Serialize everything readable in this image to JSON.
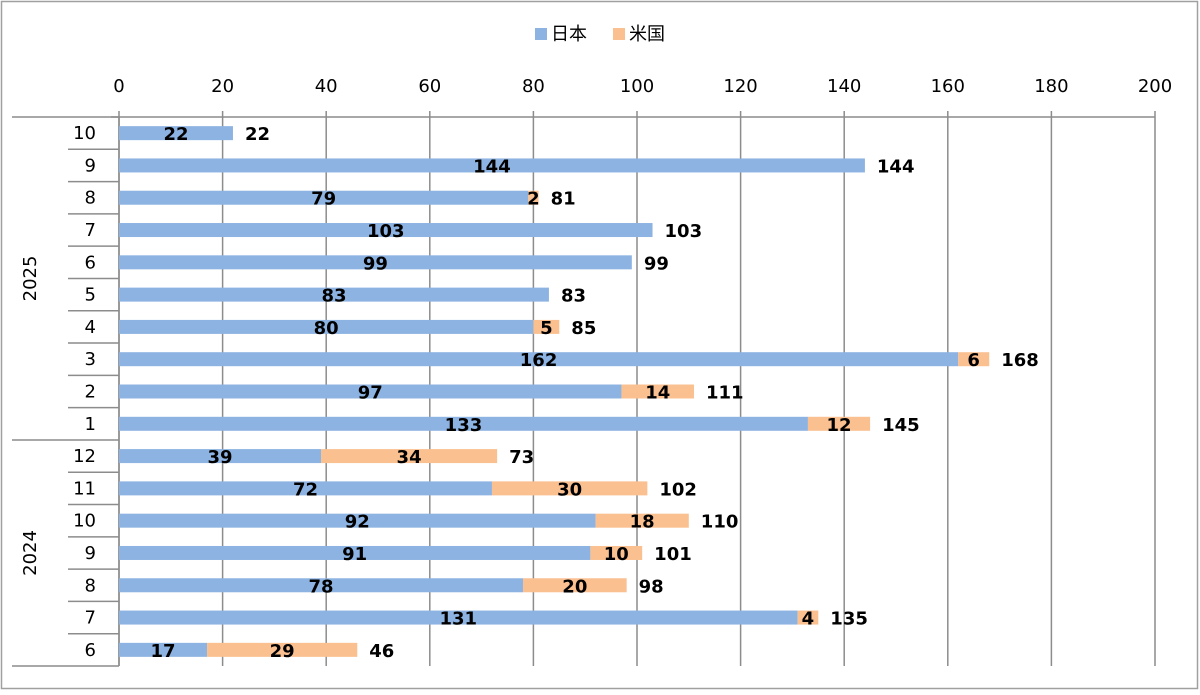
{
  "chart_data": {
    "type": "bar",
    "orientation": "horizontal",
    "stacked": true,
    "title": "",
    "xlabel": "",
    "ylabel": "",
    "xlim": [
      0,
      200
    ],
    "x_ticks": [
      0,
      20,
      40,
      60,
      80,
      100,
      120,
      140,
      160,
      180,
      200
    ],
    "grid": true,
    "legend_position": "top",
    "groups": [
      {
        "label": "2025",
        "categories": [
          "10",
          "9",
          "8",
          "7",
          "6",
          "5",
          "4",
          "3",
          "2",
          "1"
        ]
      },
      {
        "label": "2024",
        "categories": [
          "12",
          "11",
          "10",
          "9",
          "8",
          "7",
          "6"
        ]
      }
    ],
    "series": [
      {
        "name": "日本",
        "color": "#8db3e2",
        "values": [
          22,
          144,
          79,
          103,
          99,
          83,
          80,
          162,
          97,
          133,
          39,
          72,
          92,
          91,
          78,
          131,
          17
        ]
      },
      {
        "name": "米国",
        "color": "#fac090",
        "values": [
          0,
          0,
          2,
          0,
          0,
          0,
          5,
          6,
          14,
          12,
          34,
          30,
          18,
          10,
          20,
          4,
          29
        ]
      }
    ],
    "totals": [
      22,
      144,
      81,
      103,
      99,
      83,
      85,
      168,
      111,
      145,
      73,
      102,
      110,
      101,
      98,
      135,
      46
    ]
  }
}
